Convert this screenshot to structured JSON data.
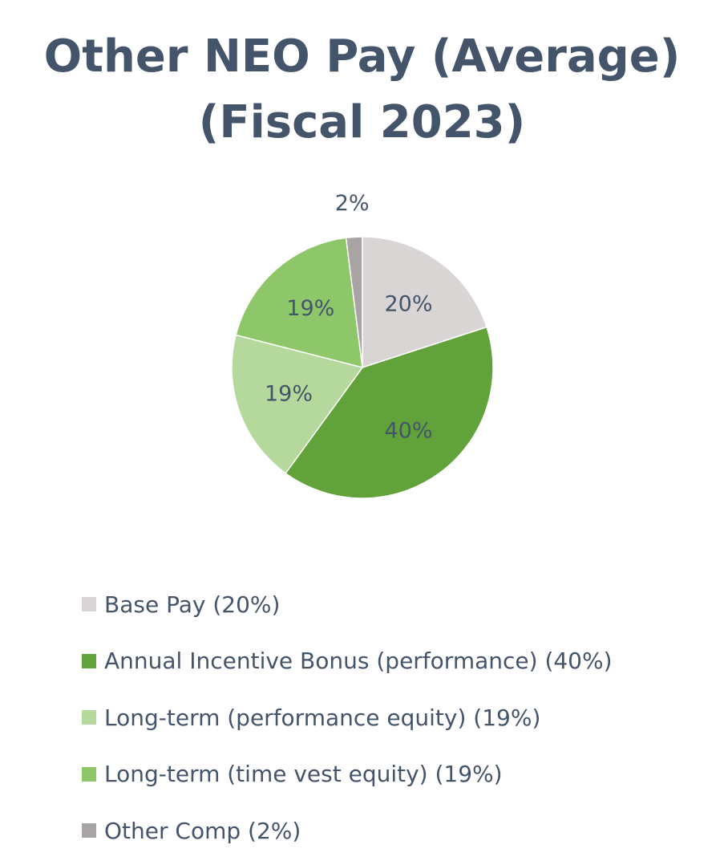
{
  "chart_data": {
    "type": "pie",
    "title": "Other NEO Pay (Average)",
    "subtitle": "(Fiscal 2023)",
    "slices": [
      {
        "label": "Base Pay (20%)",
        "value": 20,
        "data_label": "20%",
        "color": "#d9d5d5"
      },
      {
        "label": "Annual Incentive Bonus (performance) (40%)",
        "value": 40,
        "data_label": "40%",
        "color": "#62a23a"
      },
      {
        "label": "Long-term (performance equity) (19%)",
        "value": 19,
        "data_label": "19%",
        "color": "#b5d99c"
      },
      {
        "label": "Long-term (time vest equity) (19%)",
        "value": 19,
        "data_label": "19%",
        "color": "#8ec76a"
      },
      {
        "label": "Other Comp (2%)",
        "value": 2,
        "data_label": "2%",
        "color": "#a8a4a4"
      }
    ],
    "legend_position": "bottom"
  }
}
